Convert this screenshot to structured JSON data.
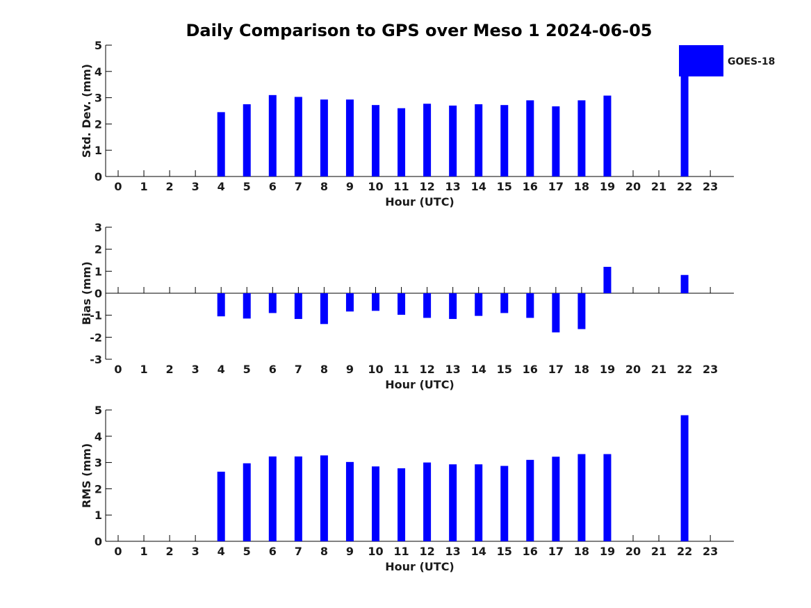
{
  "title": "Daily Comparison to GPS over Meso 1 2024-06-05",
  "legend": {
    "label": "GOES-18",
    "color": "#0000ff",
    "position": "top-right"
  },
  "chart_data": [
    {
      "type": "bar",
      "ylabel": "Std. Dev. (mm)",
      "xlabel": "Hour (UTC)",
      "ylim": [
        0,
        5
      ],
      "yticks": [
        "0",
        "1",
        "2",
        "3",
        "4",
        "5"
      ],
      "categories": [
        "0",
        "1",
        "2",
        "3",
        "4",
        "5",
        "6",
        "7",
        "8",
        "9",
        "10",
        "11",
        "12",
        "13",
        "14",
        "15",
        "16",
        "17",
        "18",
        "19",
        "20",
        "21",
        "22",
        "23"
      ],
      "series": [
        {
          "name": "GOES-18",
          "values": [
            null,
            null,
            null,
            null,
            2.45,
            2.75,
            3.1,
            3.03,
            2.93,
            2.93,
            2.72,
            2.6,
            2.77,
            2.7,
            2.75,
            2.72,
            2.9,
            2.67,
            2.9,
            3.08,
            null,
            null,
            4.8,
            null
          ]
        }
      ]
    },
    {
      "type": "bar",
      "ylabel": "Bias (mm)",
      "xlabel": "Hour (UTC)",
      "ylim": [
        -3,
        3
      ],
      "yticks": [
        "-3",
        "-2",
        "-1",
        "0",
        "1",
        "2",
        "3"
      ],
      "categories": [
        "0",
        "1",
        "2",
        "3",
        "4",
        "5",
        "6",
        "7",
        "8",
        "9",
        "10",
        "11",
        "12",
        "13",
        "14",
        "15",
        "16",
        "17",
        "18",
        "19",
        "20",
        "21",
        "22",
        "23"
      ],
      "series": [
        {
          "name": "GOES-18",
          "values": [
            null,
            null,
            null,
            null,
            -1.05,
            -1.15,
            -0.9,
            -1.17,
            -1.4,
            -0.83,
            -0.8,
            -0.98,
            -1.12,
            -1.17,
            -1.03,
            -0.9,
            -1.12,
            -1.78,
            -1.63,
            1.2,
            null,
            null,
            0.83,
            null
          ]
        }
      ]
    },
    {
      "type": "bar",
      "ylabel": "RMS (mm)",
      "xlabel": "Hour (UTC)",
      "ylim": [
        0,
        5
      ],
      "yticks": [
        "0",
        "1",
        "2",
        "3",
        "4",
        "5"
      ],
      "categories": [
        "0",
        "1",
        "2",
        "3",
        "4",
        "5",
        "6",
        "7",
        "8",
        "9",
        "10",
        "11",
        "12",
        "13",
        "14",
        "15",
        "16",
        "17",
        "18",
        "19",
        "20",
        "21",
        "22",
        "23"
      ],
      "series": [
        {
          "name": "GOES-18",
          "values": [
            null,
            null,
            null,
            null,
            2.65,
            2.97,
            3.23,
            3.23,
            3.27,
            3.02,
            2.85,
            2.78,
            3.0,
            2.93,
            2.93,
            2.87,
            3.1,
            3.22,
            3.32,
            3.32,
            null,
            null,
            4.8,
            null
          ]
        }
      ]
    }
  ]
}
